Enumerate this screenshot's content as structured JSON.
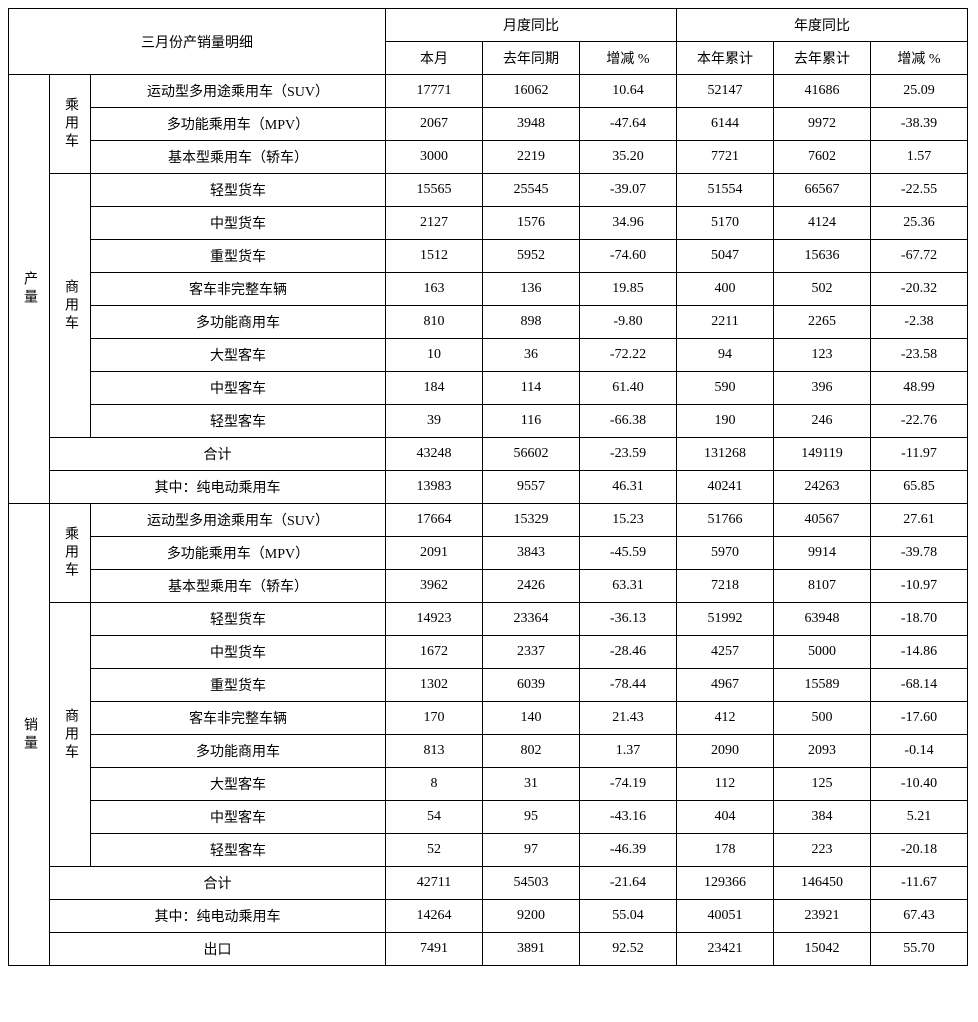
{
  "title": "三月份产销量明细",
  "headers": {
    "monthly_group": "月度同比",
    "yearly_group": "年度同比",
    "this_month": "本月",
    "last_year_same": "去年同期",
    "change_pct": "增减 %",
    "this_year_cum": "本年累计",
    "last_year_cum": "去年累计"
  },
  "sections": {
    "production": "产量",
    "sales": "销量",
    "passenger": "乘用车",
    "commercial": "商用车"
  },
  "row_labels": {
    "suv": "运动型多用途乘用车（SUV）",
    "mpv": "多功能乘用车（MPV）",
    "sedan": "基本型乘用车（轿车）",
    "light_truck": "轻型货车",
    "mid_truck": "中型货车",
    "heavy_truck": "重型货车",
    "bus_incomplete": "客车非完整车辆",
    "multi_commercial": "多功能商用车",
    "large_bus": "大型客车",
    "mid_bus": "中型客车",
    "light_bus": "轻型客车",
    "total": "合计",
    "ev_passenger": "其中：纯电动乘用车",
    "export": "出口"
  },
  "production": {
    "suv": {
      "m": "17771",
      "ly": "16062",
      "mc": "10.64",
      "yc": "52147",
      "lyc": "41686",
      "ycg": "25.09"
    },
    "mpv": {
      "m": "2067",
      "ly": "3948",
      "mc": "-47.64",
      "yc": "6144",
      "lyc": "9972",
      "ycg": "-38.39"
    },
    "sedan": {
      "m": "3000",
      "ly": "2219",
      "mc": "35.20",
      "yc": "7721",
      "lyc": "7602",
      "ycg": "1.57"
    },
    "light_truck": {
      "m": "15565",
      "ly": "25545",
      "mc": "-39.07",
      "yc": "51554",
      "lyc": "66567",
      "ycg": "-22.55"
    },
    "mid_truck": {
      "m": "2127",
      "ly": "1576",
      "mc": "34.96",
      "yc": "5170",
      "lyc": "4124",
      "ycg": "25.36"
    },
    "heavy_truck": {
      "m": "1512",
      "ly": "5952",
      "mc": "-74.60",
      "yc": "5047",
      "lyc": "15636",
      "ycg": "-67.72"
    },
    "bus_incomplete": {
      "m": "163",
      "ly": "136",
      "mc": "19.85",
      "yc": "400",
      "lyc": "502",
      "ycg": "-20.32"
    },
    "multi_commercial": {
      "m": "810",
      "ly": "898",
      "mc": "-9.80",
      "yc": "2211",
      "lyc": "2265",
      "ycg": "-2.38"
    },
    "large_bus": {
      "m": "10",
      "ly": "36",
      "mc": "-72.22",
      "yc": "94",
      "lyc": "123",
      "ycg": "-23.58"
    },
    "mid_bus": {
      "m": "184",
      "ly": "114",
      "mc": "61.40",
      "yc": "590",
      "lyc": "396",
      "ycg": "48.99"
    },
    "light_bus": {
      "m": "39",
      "ly": "116",
      "mc": "-66.38",
      "yc": "190",
      "lyc": "246",
      "ycg": "-22.76"
    },
    "total": {
      "m": "43248",
      "ly": "56602",
      "mc": "-23.59",
      "yc": "131268",
      "lyc": "149119",
      "ycg": "-11.97"
    },
    "ev_passenger": {
      "m": "13983",
      "ly": "9557",
      "mc": "46.31",
      "yc": "40241",
      "lyc": "24263",
      "ycg": "65.85"
    }
  },
  "sales": {
    "suv": {
      "m": "17664",
      "ly": "15329",
      "mc": "15.23",
      "yc": "51766",
      "lyc": "40567",
      "ycg": "27.61"
    },
    "mpv": {
      "m": "2091",
      "ly": "3843",
      "mc": "-45.59",
      "yc": "5970",
      "lyc": "9914",
      "ycg": "-39.78"
    },
    "sedan": {
      "m": "3962",
      "ly": "2426",
      "mc": "63.31",
      "yc": "7218",
      "lyc": "8107",
      "ycg": "-10.97"
    },
    "light_truck": {
      "m": "14923",
      "ly": "23364",
      "mc": "-36.13",
      "yc": "51992",
      "lyc": "63948",
      "ycg": "-18.70"
    },
    "mid_truck": {
      "m": "1672",
      "ly": "2337",
      "mc": "-28.46",
      "yc": "4257",
      "lyc": "5000",
      "ycg": "-14.86"
    },
    "heavy_truck": {
      "m": "1302",
      "ly": "6039",
      "mc": "-78.44",
      "yc": "4967",
      "lyc": "15589",
      "ycg": "-68.14"
    },
    "bus_incomplete": {
      "m": "170",
      "ly": "140",
      "mc": "21.43",
      "yc": "412",
      "lyc": "500",
      "ycg": "-17.60"
    },
    "multi_commercial": {
      "m": "813",
      "ly": "802",
      "mc": "1.37",
      "yc": "2090",
      "lyc": "2093",
      "ycg": "-0.14"
    },
    "large_bus": {
      "m": "8",
      "ly": "31",
      "mc": "-74.19",
      "yc": "112",
      "lyc": "125",
      "ycg": "-10.40"
    },
    "mid_bus": {
      "m": "54",
      "ly": "95",
      "mc": "-43.16",
      "yc": "404",
      "lyc": "384",
      "ycg": "5.21"
    },
    "light_bus": {
      "m": "52",
      "ly": "97",
      "mc": "-46.39",
      "yc": "178",
      "lyc": "223",
      "ycg": "-20.18"
    },
    "total": {
      "m": "42711",
      "ly": "54503",
      "mc": "-21.64",
      "yc": "129366",
      "lyc": "146450",
      "ycg": "-11.67"
    },
    "ev_passenger": {
      "m": "14264",
      "ly": "9200",
      "mc": "55.04",
      "yc": "40051",
      "lyc": "23921",
      "ycg": "67.43"
    },
    "export": {
      "m": "7491",
      "ly": "3891",
      "mc": "92.52",
      "yc": "23421",
      "lyc": "15042",
      "ycg": "55.70"
    }
  }
}
